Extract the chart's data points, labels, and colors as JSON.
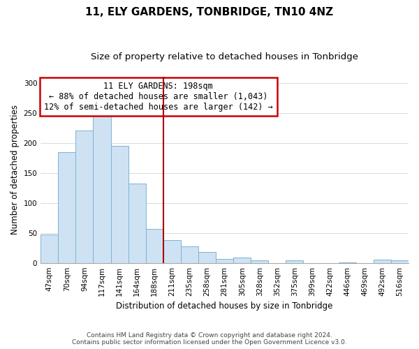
{
  "title": "11, ELY GARDENS, TONBRIDGE, TN10 4NZ",
  "subtitle": "Size of property relative to detached houses in Tonbridge",
  "xlabel": "Distribution of detached houses by size in Tonbridge",
  "ylabel": "Number of detached properties",
  "bar_labels": [
    "47sqm",
    "70sqm",
    "94sqm",
    "117sqm",
    "141sqm",
    "164sqm",
    "188sqm",
    "211sqm",
    "235sqm",
    "258sqm",
    "281sqm",
    "305sqm",
    "328sqm",
    "352sqm",
    "375sqm",
    "399sqm",
    "422sqm",
    "446sqm",
    "469sqm",
    "492sqm",
    "516sqm"
  ],
  "bar_values": [
    47,
    185,
    220,
    250,
    195,
    132,
    57,
    38,
    27,
    18,
    7,
    9,
    4,
    0,
    4,
    0,
    0,
    1,
    0,
    5,
    4
  ],
  "bar_color": "#cfe2f3",
  "bar_edge_color": "#7ab3d4",
  "vline_x_index": 6.5,
  "vline_color": "#aa0000",
  "annotation_title": "11 ELY GARDENS: 198sqm",
  "annotation_line1": "← 88% of detached houses are smaller (1,043)",
  "annotation_line2": "12% of semi-detached houses are larger (142) →",
  "annotation_box_edge": "#cc0000",
  "ylim": [
    0,
    310
  ],
  "yticks": [
    0,
    50,
    100,
    150,
    200,
    250,
    300
  ],
  "footnote1": "Contains HM Land Registry data © Crown copyright and database right 2024.",
  "footnote2": "Contains public sector information licensed under the Open Government Licence v3.0.",
  "title_fontsize": 11,
  "subtitle_fontsize": 9.5,
  "axis_fontsize": 8.5,
  "tick_fontsize": 7.5,
  "footnote_fontsize": 6.5,
  "background_color": "#ffffff"
}
